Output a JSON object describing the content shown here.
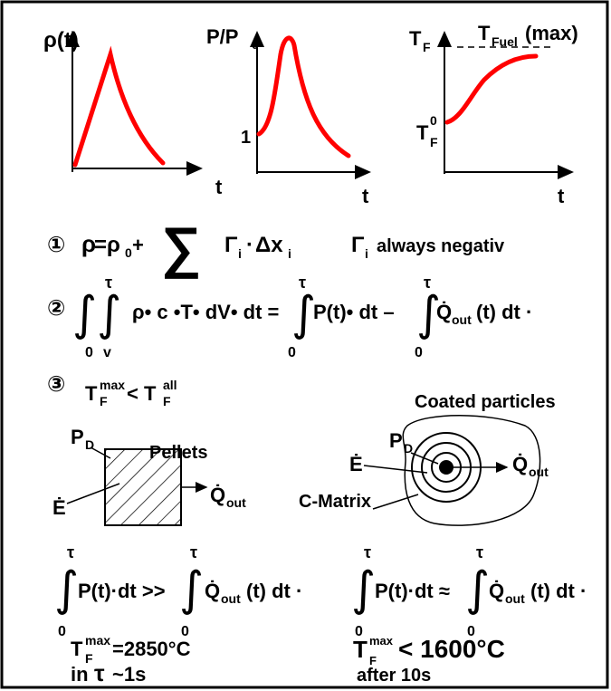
{
  "graphs": [
    {
      "y_label": "ρ(t)",
      "x_label": "t"
    },
    {
      "y_label": "P/P",
      "y_label_sub": "0",
      "tick_label": "1",
      "x_label": "t"
    },
    {
      "y_label": "T",
      "y_label_sub": "F",
      "max_label": "T",
      "max_label_sub": "Fuel",
      "max_label_tail": "(max)",
      "start_label": "T",
      "start_label_sub": "F",
      "start_label_sup": "0",
      "x_label": "t"
    }
  ],
  "equation_1": [
    "①",
    "ρ",
    "=ρ",
    "0",
    "+",
    "∑",
    "Γ",
    "i",
    "·",
    "Δx",
    "i",
    "Γ",
    "i",
    "always negativ"
  ],
  "equation_2": [
    "②",
    "∫∫",
    "τ",
    "0",
    "v",
    "ρ• c •T• dV• dt =",
    "∫",
    "τ",
    "0",
    "P(t)• dt –",
    "∫",
    "τ",
    "0",
    "Q̇",
    "out",
    "(t) dt ·"
  ],
  "equation_3": [
    "③",
    "T",
    "max",
    "F",
    "< T",
    "all",
    "F"
  ],
  "pellets": {
    "title": "Pellets",
    "pd": [
      "P",
      "D"
    ],
    "e": "Ė",
    "q": [
      "Q̇",
      "out"
    ],
    "balance": [
      "∫",
      "τ",
      "0",
      "P(t)·dt >>",
      "∫",
      "τ",
      "0",
      "Q̇",
      "out",
      "(t) dt ·"
    ],
    "result": [
      "T",
      "max",
      "F",
      "=2850°C"
    ],
    "time": [
      "in",
      "τ",
      "~1s"
    ]
  },
  "coated": {
    "title": "Coated particles",
    "pd": [
      "P",
      "D"
    ],
    "e": "Ė",
    "q": [
      "Q̇",
      "out"
    ],
    "matrix": "C-Matrix",
    "balance": [
      "∫",
      "τ",
      "0",
      "P(t)·dt ≈",
      "∫",
      "τ",
      "0",
      "Q̇",
      "out",
      "(t) dt ·"
    ],
    "result": [
      "T",
      "max",
      "F",
      "< 1600°C"
    ],
    "time": "after 10s"
  }
}
